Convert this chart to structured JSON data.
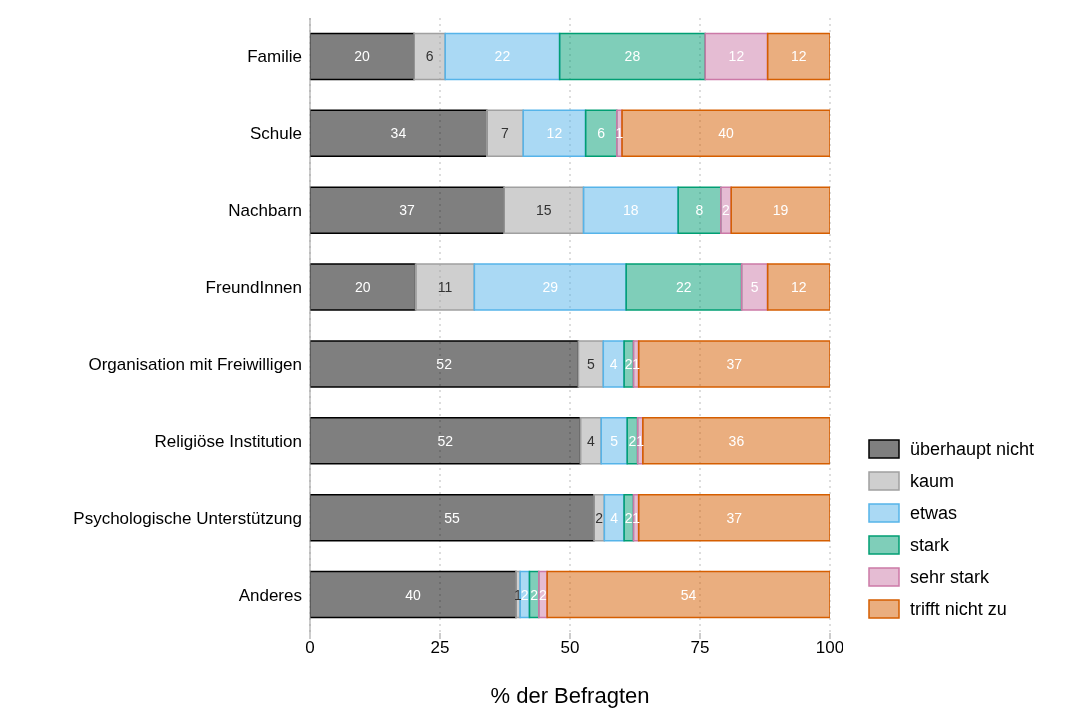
{
  "chart_data": {
    "type": "bar",
    "orientation": "horizontal",
    "stacked": true,
    "xlabel": "% der Befragten",
    "categories": [
      "Familie",
      "Schule",
      "Nachbarn",
      "FreundInnen",
      "Organisation mit Freiwilligen",
      "Religiöse Institution",
      "Psychologische Unterstützung",
      "Anderes"
    ],
    "series": [
      {
        "name": "überhaupt nicht",
        "color": "#000000",
        "values": [
          20,
          34,
          37.3,
          20.3,
          51.6,
          52,
          54.6,
          39.6
        ],
        "value_labels": [
          "20",
          "34",
          "37",
          "20",
          "52",
          "52",
          "55",
          "40"
        ]
      },
      {
        "name": "kaum",
        "color": "#a0a0a0",
        "values": [
          6,
          7,
          15.3,
          11.3,
          4.8,
          4,
          2,
          0.8
        ],
        "value_labels": [
          "6",
          "7",
          "15",
          "11",
          "5",
          "4",
          "2",
          "1"
        ]
      },
      {
        "name": "etwas",
        "color": "#56b4e9",
        "values": [
          22,
          12,
          18.2,
          29.2,
          4,
          5,
          3.8,
          1.8
        ],
        "value_labels": [
          "22",
          "12",
          "18",
          "29",
          "4",
          "5",
          "4",
          "2"
        ]
      },
      {
        "name": "stark",
        "color": "#009e73",
        "values": [
          28,
          6,
          8.2,
          22.2,
          1.8,
          2,
          1.8,
          1.8
        ],
        "value_labels": [
          "28",
          "6",
          "8",
          "22",
          "2",
          "2",
          "2",
          "2"
        ]
      },
      {
        "name": "sehr stark",
        "color": "#cc79a7",
        "values": [
          12,
          1,
          2,
          5,
          1,
          1,
          1,
          1.6
        ],
        "value_labels": [
          "12",
          "1",
          "2",
          "5",
          "1",
          "1",
          "1",
          "2"
        ]
      },
      {
        "name": "trifft nicht zu",
        "color": "#d55e00",
        "values": [
          12,
          40,
          19,
          12,
          36.8,
          36,
          36.8,
          54.4
        ],
        "value_labels": [
          "12",
          "40",
          "19",
          "12",
          "37",
          "36",
          "37",
          "54"
        ]
      }
    ],
    "xlim": [
      0,
      100
    ],
    "xticks": [
      0,
      25,
      50,
      75,
      100
    ],
    "grid": "x",
    "legend": "right"
  }
}
